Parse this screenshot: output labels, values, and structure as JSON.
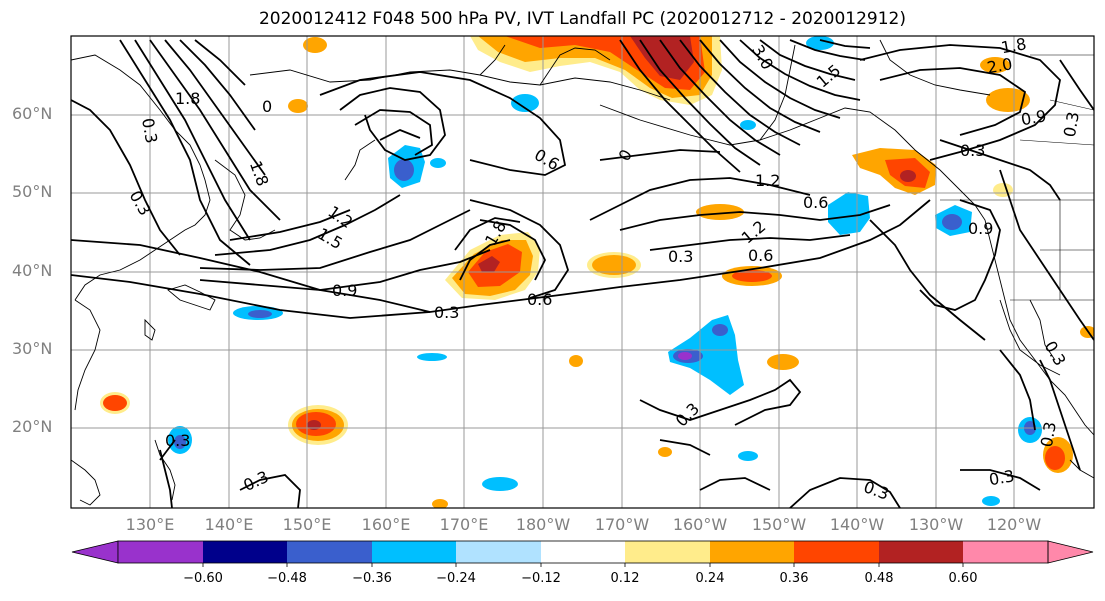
{
  "title": "2020012412 F048 500 hPa PV, IVT Landfall PC (2020012712 - 2020012912)",
  "lat_labels": [
    "60°N",
    "50°N",
    "40°N",
    "30°N",
    "20°N"
  ],
  "lon_labels": [
    "130°E",
    "140°E",
    "150°E",
    "160°E",
    "170°E",
    "180°W",
    "170°W",
    "160°W",
    "150°W",
    "140°W",
    "130°W",
    "120°W"
  ],
  "contour_labels": [
    "1.8",
    "0",
    "0.3",
    "0.3",
    "1.8",
    "1.2",
    "1.5",
    "0.9",
    "0.3",
    "0.6",
    "1.8",
    "0.6",
    "0",
    "3.0",
    "1.5",
    "1.2",
    "0.6",
    "0.3",
    "0.6",
    "1.2",
    "0.3",
    "0.9",
    "0.3",
    "0.9",
    "1.8",
    "2.0",
    "0.3",
    "0.3",
    "0.3",
    "0.3",
    "0.3",
    "0.3",
    "0.3"
  ],
  "colorbar": {
    "ticks": [
      "−0.60",
      "−0.48",
      "−0.36",
      "−0.24",
      "−0.12",
      "0.12",
      "0.24",
      "0.36",
      "0.48",
      "0.60"
    ],
    "colors": [
      "#9932CC",
      "#00008B",
      "#3A5FCD",
      "#00BFFF",
      "#B0E2FF",
      "#FFFFFF",
      "#FFEC8B",
      "#FFA500",
      "#FF4500",
      "#B22222",
      "#FF88AA"
    ]
  },
  "shading": {
    "neg1": "#00BFFF",
    "neg2": "#3A5FCD",
    "neg3": "#9932CC",
    "pos1": "#FFEC8B",
    "pos2": "#FFA500",
    "pos3": "#FF4500",
    "pos4": "#B22222"
  }
}
